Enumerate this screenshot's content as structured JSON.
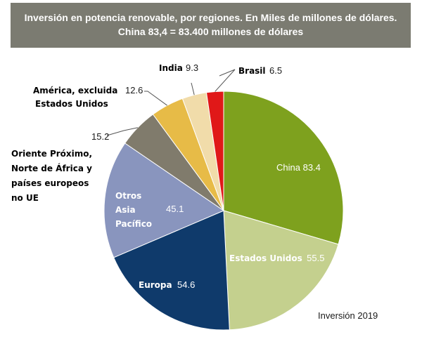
{
  "header": {
    "line1": "Inversión en potencia renovable, por regiones. En Miles de millones de dólares.",
    "line2": "China 83,4 = 83.400 millones de dólares"
  },
  "footnote": "Inversión 2019",
  "colors": {
    "header_bg": "#7b7b71",
    "china": "#7ea11e",
    "estados_unidos": "#c4d08e",
    "europa": "#0f3a6b",
    "otros_asia_pacifico": "#8995be",
    "oriente_proximo": "#807b6c",
    "america": "#e7bb47",
    "india": "#f1dcaa",
    "brasil": "#e01818"
  },
  "chart_data": {
    "type": "pie",
    "title": "Inversión en potencia renovable, por regiones. En Miles de millones de dólares.",
    "subtitle": "China 83,4 = 83.400 millones de dólares",
    "slices": [
      {
        "key": "china",
        "label": "China",
        "value": 83.4,
        "value_text": "83.4"
      },
      {
        "key": "estados_unidos",
        "label": "Estados Unidos",
        "value": 55.5,
        "value_text": "55.5"
      },
      {
        "key": "europa",
        "label": "Europa",
        "value": 54.6,
        "value_text": "54.6"
      },
      {
        "key": "otros_asia_pacifico",
        "label": "Otros Asia Pacífico",
        "label_lines": [
          "Otros",
          "Asia",
          "Pacífico"
        ],
        "value": 45.1,
        "value_text": "45.1"
      },
      {
        "key": "oriente_proximo",
        "label": "Oriente Próximo, Norte de África y países europeos no UE",
        "label_lines": [
          "Oriente Próximo,",
          "Norte de África y",
          "países europeos",
          "no UE"
        ],
        "value": 15.2,
        "value_text": "15.2"
      },
      {
        "key": "america",
        "label": "América, excluida Estados Unidos",
        "label_lines": [
          "América, excluida",
          "Estados Unidos"
        ],
        "value": 12.6,
        "value_text": "12.6"
      },
      {
        "key": "india",
        "label": "India",
        "value": 9.3,
        "value_text": "9.3"
      },
      {
        "key": "brasil",
        "label": "Brasil",
        "value": 6.5,
        "value_text": "6.5"
      }
    ],
    "start_angle_deg": 0,
    "direction": "clockwise",
    "note": "Inversión 2019"
  }
}
